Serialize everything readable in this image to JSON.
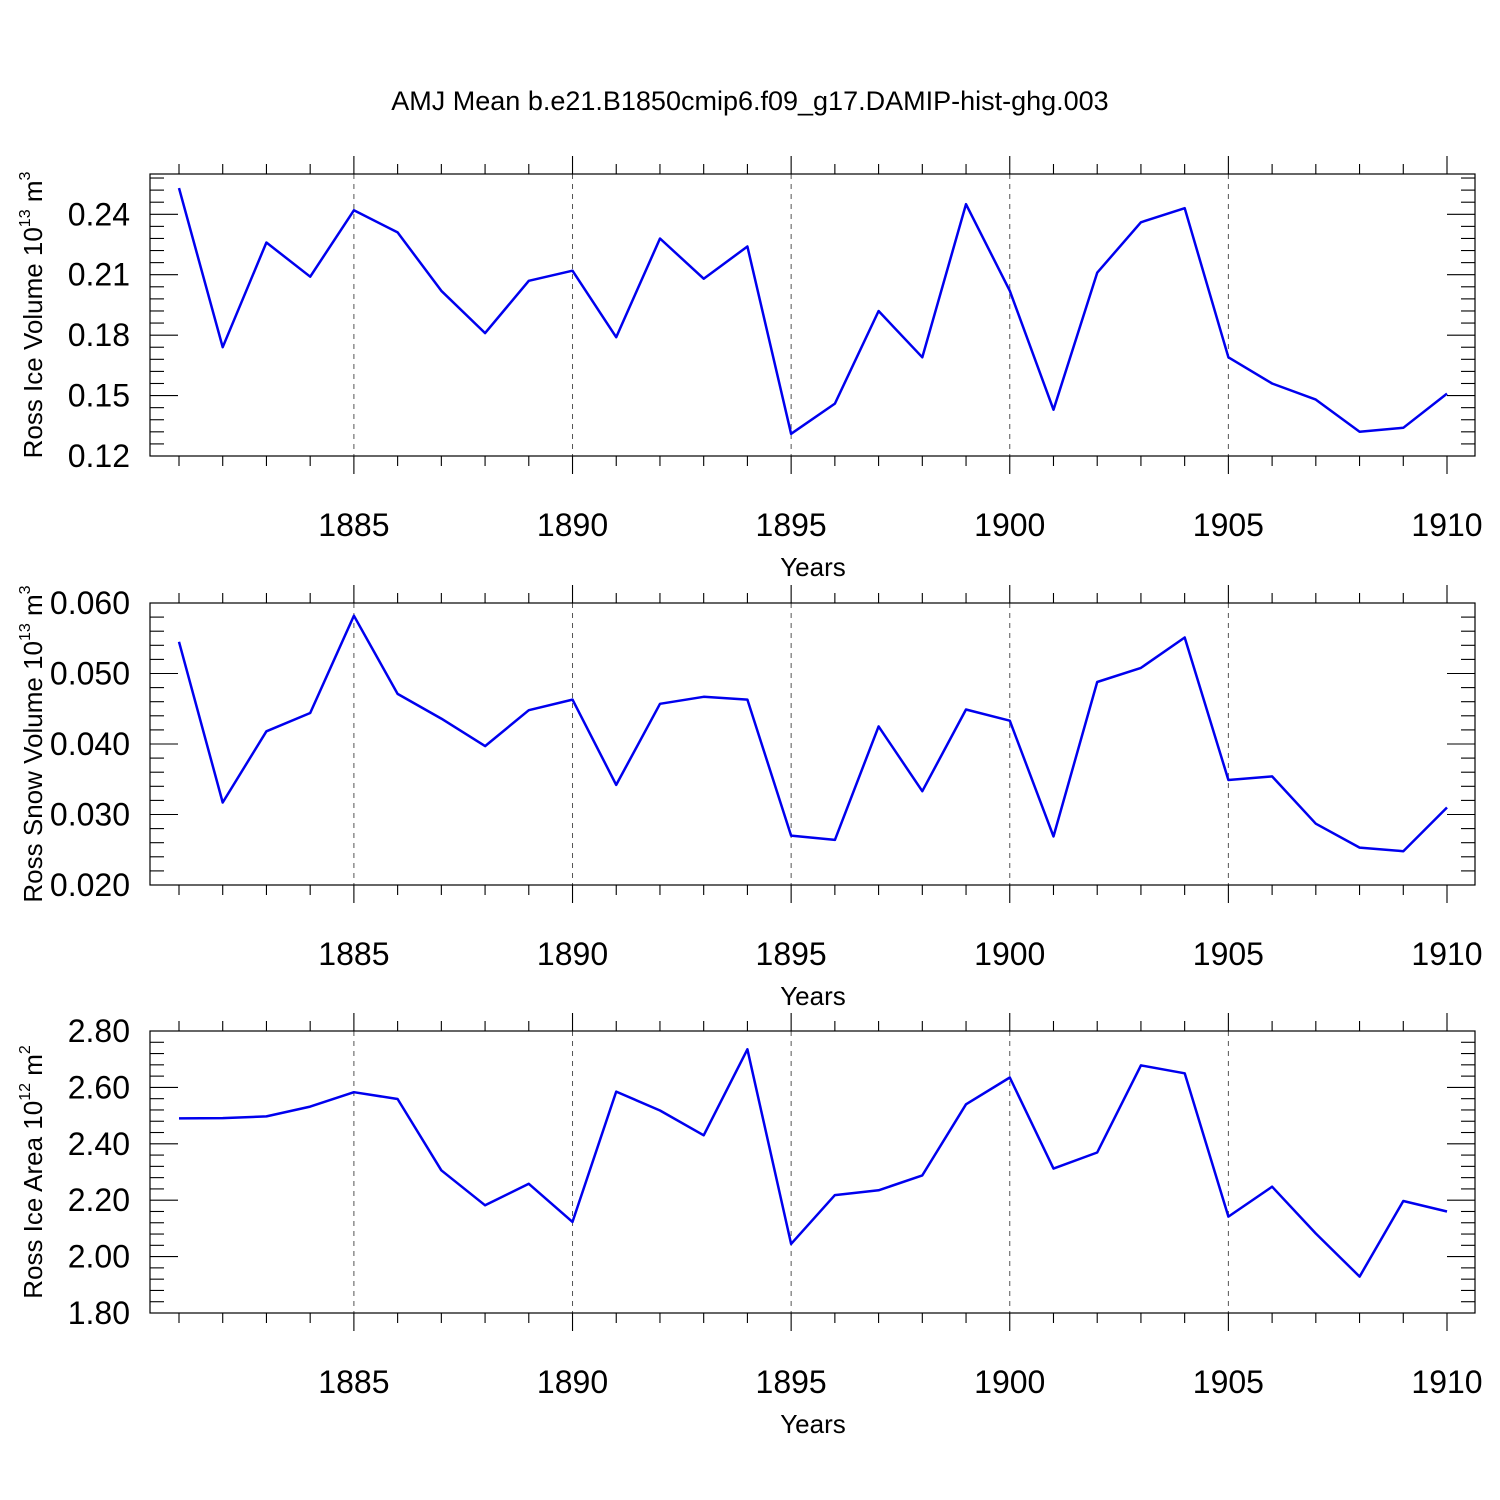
{
  "chart_data": [
    {
      "type": "line",
      "title": "AMJ Mean b.e21.B1850cmip6.f09_g17.DAMIP-hist-ghg.003",
      "xlabel": "Years",
      "ylabel": "Ross Ice Volume 10",
      "ylabel_exp": "13",
      "ylabel_unit": " m",
      "ylabel_unit_exp": "3",
      "xlim": [
        1881,
        1910
      ],
      "ylim": [
        0.12,
        0.26
      ],
      "xticks": [
        1885,
        1890,
        1895,
        1900,
        1905,
        1910
      ],
      "xtick_labels": [
        "1885",
        "1890",
        "1895",
        "1900",
        "1905",
        "1910"
      ],
      "yticks": [
        0.12,
        0.15,
        0.18,
        0.21,
        0.24
      ],
      "ytick_labels": [
        "0.12",
        "0.15",
        "0.18",
        "0.21",
        "0.24"
      ],
      "grid": "dashed vertical at major x ticks",
      "line_color": "#0000ee",
      "x": [
        1881,
        1882,
        1883,
        1884,
        1885,
        1886,
        1887,
        1888,
        1889,
        1890,
        1891,
        1892,
        1893,
        1894,
        1895,
        1896,
        1897,
        1898,
        1899,
        1900,
        1901,
        1902,
        1903,
        1904,
        1905,
        1906,
        1907,
        1908,
        1909,
        1910
      ],
      "values": [
        0.253,
        0.174,
        0.226,
        0.209,
        0.242,
        0.231,
        0.202,
        0.181,
        0.207,
        0.212,
        0.179,
        0.228,
        0.208,
        0.224,
        0.131,
        0.146,
        0.192,
        0.169,
        0.245,
        0.202,
        0.143,
        0.211,
        0.236,
        0.243,
        0.169,
        0.156,
        0.148,
        0.132,
        0.134,
        0.151
      ]
    },
    {
      "type": "line",
      "xlabel": "Years",
      "ylabel": "Ross Snow Volume 10",
      "ylabel_exp": "13",
      "ylabel_unit": " m",
      "ylabel_unit_exp": "3",
      "xlim": [
        1881,
        1910
      ],
      "ylim": [
        0.02,
        0.06
      ],
      "xticks": [
        1885,
        1890,
        1895,
        1900,
        1905,
        1910
      ],
      "xtick_labels": [
        "1885",
        "1890",
        "1895",
        "1900",
        "1905",
        "1910"
      ],
      "yticks": [
        0.02,
        0.03,
        0.04,
        0.05,
        0.06
      ],
      "ytick_labels": [
        "0.020",
        "0.030",
        "0.040",
        "0.050",
        "0.060"
      ],
      "grid": "dashed vertical at major x ticks",
      "line_color": "#0000ee",
      "x": [
        1881,
        1882,
        1883,
        1884,
        1885,
        1886,
        1887,
        1888,
        1889,
        1890,
        1891,
        1892,
        1893,
        1894,
        1895,
        1896,
        1897,
        1898,
        1899,
        1900,
        1901,
        1902,
        1903,
        1904,
        1905,
        1906,
        1907,
        1908,
        1909,
        1910
      ],
      "values": [
        0.0545,
        0.0317,
        0.0418,
        0.0444,
        0.0582,
        0.0471,
        0.0436,
        0.0397,
        0.0448,
        0.0463,
        0.0342,
        0.0457,
        0.0467,
        0.0463,
        0.027,
        0.0264,
        0.0425,
        0.0333,
        0.0449,
        0.0433,
        0.0269,
        0.0488,
        0.0508,
        0.0551,
        0.0349,
        0.0354,
        0.0287,
        0.0253,
        0.0248,
        0.031
      ]
    },
    {
      "type": "line",
      "xlabel": "Years",
      "ylabel": "Ross Ice Area 10",
      "ylabel_exp": "12",
      "ylabel_unit": " m",
      "ylabel_unit_exp": "2",
      "xlim": [
        1881,
        1910
      ],
      "ylim": [
        1.8,
        2.8
      ],
      "xticks": [
        1885,
        1890,
        1895,
        1900,
        1905,
        1910
      ],
      "xtick_labels": [
        "1885",
        "1890",
        "1895",
        "1900",
        "1905",
        "1910"
      ],
      "yticks": [
        1.8,
        2.0,
        2.2,
        2.4,
        2.6,
        2.8
      ],
      "ytick_labels": [
        "1.80",
        "2.00",
        "2.20",
        "2.40",
        "2.60",
        "2.80"
      ],
      "grid": "dashed vertical at major x ticks",
      "line_color": "#0000ee",
      "x": [
        1881,
        1882,
        1883,
        1884,
        1885,
        1886,
        1887,
        1888,
        1889,
        1890,
        1891,
        1892,
        1893,
        1894,
        1895,
        1896,
        1897,
        1898,
        1899,
        1900,
        1901,
        1902,
        1903,
        1904,
        1905,
        1906,
        1907,
        1908,
        1909,
        1910
      ],
      "values": [
        2.49,
        2.491,
        2.497,
        2.532,
        2.583,
        2.559,
        2.306,
        2.182,
        2.258,
        2.123,
        2.585,
        2.518,
        2.43,
        2.735,
        2.045,
        2.218,
        2.235,
        2.288,
        2.54,
        2.635,
        2.312,
        2.369,
        2.678,
        2.65,
        2.142,
        2.248,
        2.082,
        1.929,
        2.197,
        2.16
      ]
    }
  ]
}
